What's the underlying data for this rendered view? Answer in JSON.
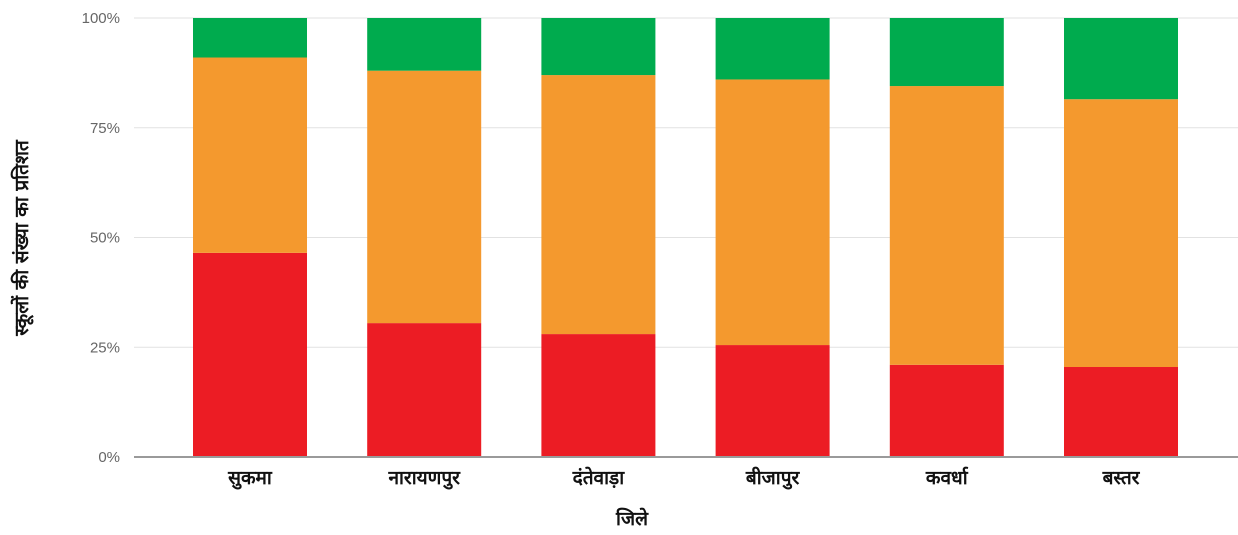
{
  "chart_data": {
    "type": "bar",
    "stacked": true,
    "normalized": true,
    "xlabel": "जिले",
    "ylabel": "स्कूलों की संख्या का प्रतिशत",
    "ylim": [
      0,
      100
    ],
    "y_ticks": [
      "0%",
      "25%",
      "50%",
      "75%",
      "100%"
    ],
    "grid": true,
    "categories": [
      "सुकमा",
      "नारायणपुर",
      "दंतेवाड़ा",
      "बीजापुर",
      "कवर्धा",
      "बस्तर"
    ],
    "series": [
      {
        "color": "#ec1c24",
        "values": [
          46.5,
          30.5,
          28,
          25.5,
          21,
          20.5
        ]
      },
      {
        "color": "#f4992e",
        "values": [
          44.5,
          57.5,
          59,
          60.5,
          63.5,
          61
        ]
      },
      {
        "color": "#00ab4e",
        "values": [
          9,
          12,
          13,
          14,
          15.5,
          18.5
        ]
      }
    ]
  }
}
